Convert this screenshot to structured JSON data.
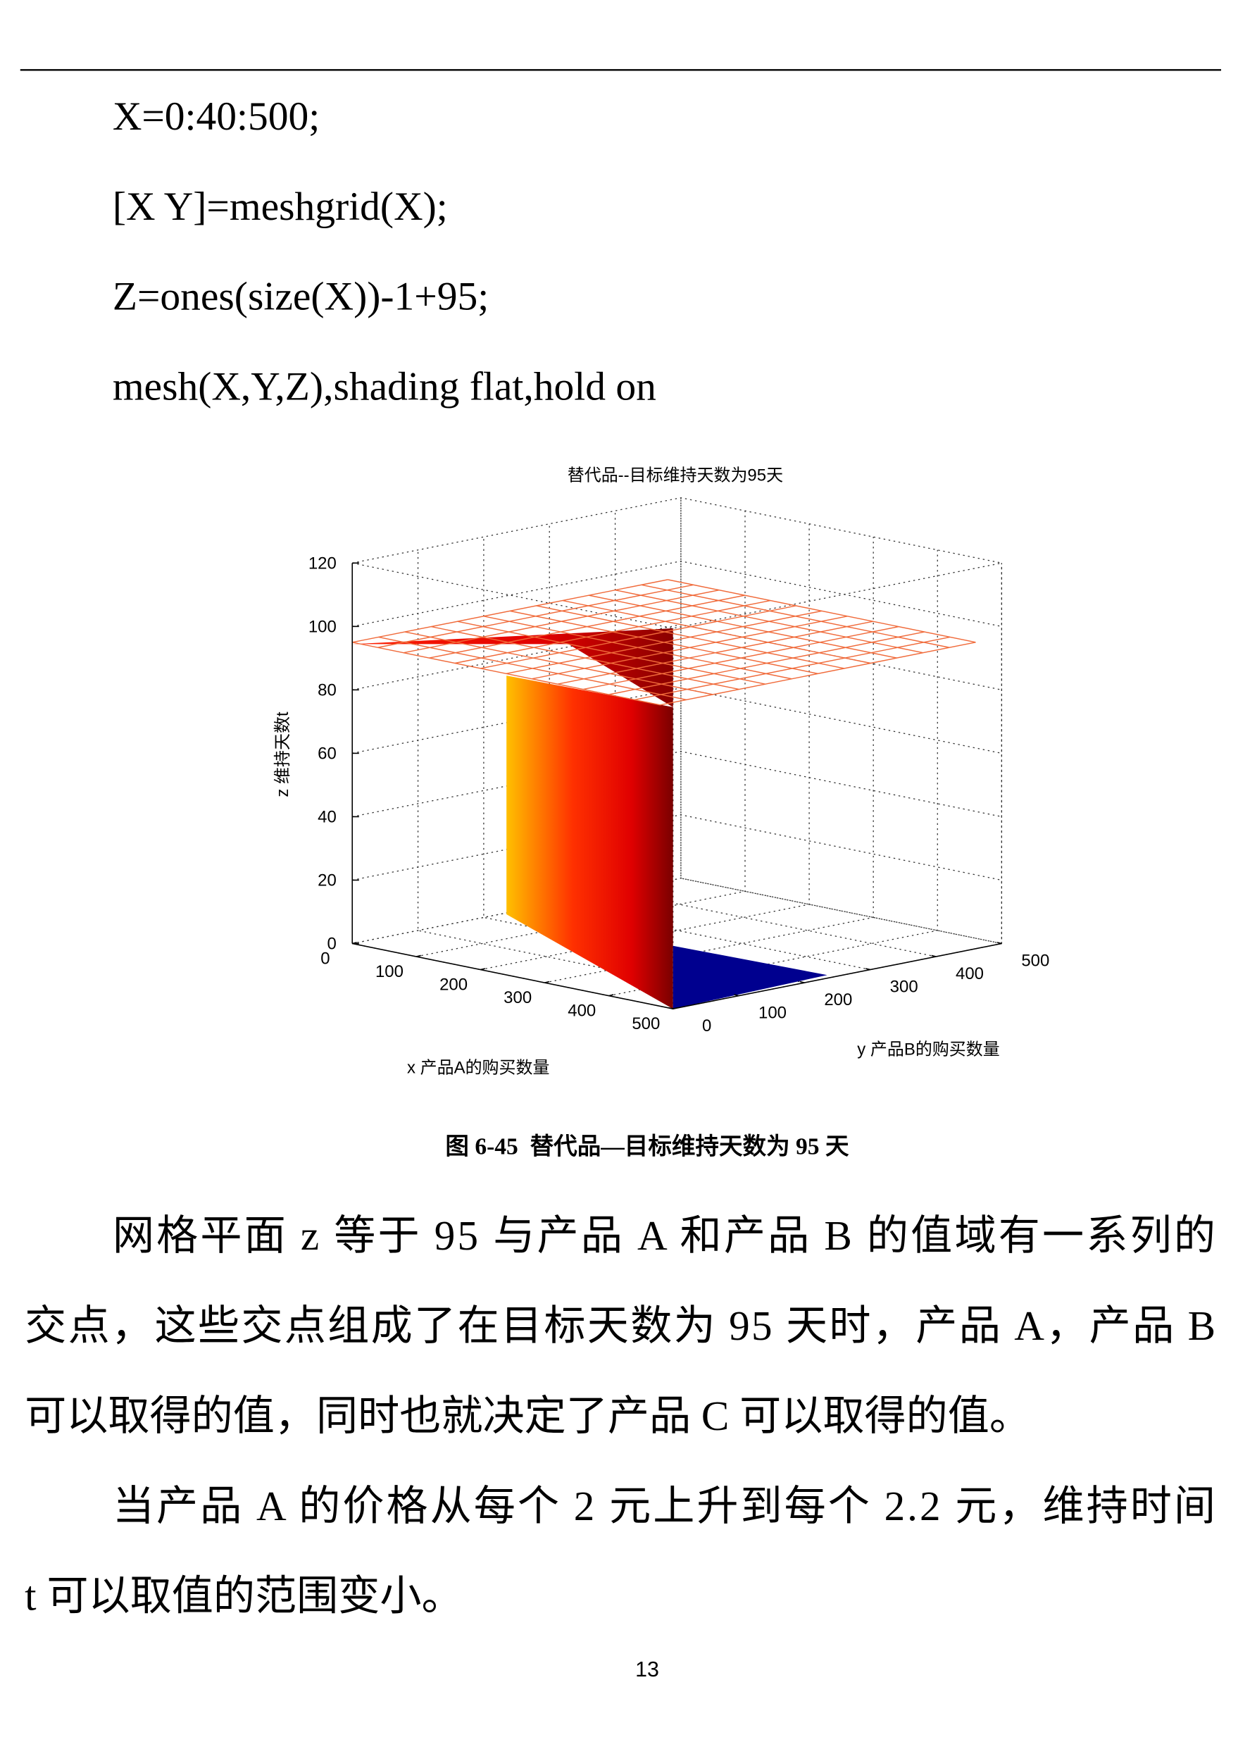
{
  "code": [
    "X=0:40:500;",
    "[X Y]=meshgrid(X);",
    "Z=ones(size(X))-1+95;",
    "mesh(X,Y,Z),shading flat,hold on"
  ],
  "figure": {
    "title": "替代品--目标维持天数为95天",
    "zlabel": "z 维持天数t",
    "xlabel": "x 产品A的购买数量",
    "ylabel": "y 产品B的购买数量",
    "zticks": [
      0,
      20,
      40,
      60,
      80,
      100,
      120
    ],
    "xticks": [
      0,
      100,
      200,
      300,
      400,
      500
    ],
    "yticks": [
      0,
      100,
      200,
      300,
      400,
      500
    ],
    "caption": "图 6-45  替代品—目标维持天数为 95 天"
  },
  "paragraphs": [
    [
      "网格平面 z 等于 95 与产品 A 和产品 B 的值域有一系列的",
      "交点，这些交点组成了在目标天数为 95 天时，产品 A，产品 B",
      "可以取得的值，同时也就决定了产品 C 可以取得的值。"
    ],
    [
      "当产品 A 的价格从每个 2 元上升到每个 2.2 元，维持时间",
      "t 可以取值的范围变小。"
    ]
  ],
  "page_number": "13"
}
